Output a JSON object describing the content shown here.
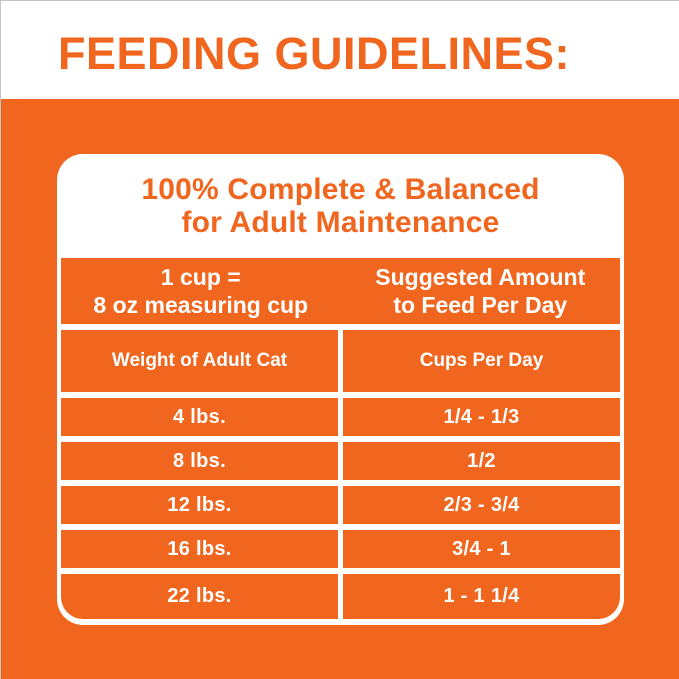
{
  "colors": {
    "orange": "#F0661E",
    "white": "#FFFFFF"
  },
  "header": {
    "title": "FEEDING GUIDELINES:"
  },
  "panel": {
    "heading_line1": "100% Complete & Balanced",
    "heading_line2": "for Adult Maintenance",
    "table": {
      "header_primary": {
        "left": [
          "1 cup =",
          "8 oz measuring cup"
        ],
        "right": [
          "Suggested Amount",
          "to Feed Per Day"
        ]
      },
      "columns": [
        "Weight of Adult Cat",
        "Cups Per Day"
      ],
      "rows": [
        {
          "weight": "4 lbs.",
          "cups": "1/4 - 1/3"
        },
        {
          "weight": "8 lbs.",
          "cups": "1/2"
        },
        {
          "weight": "12 lbs.",
          "cups": "2/3 - 3/4"
        },
        {
          "weight": "16 lbs.",
          "cups": "3/4 - 1"
        },
        {
          "weight": "22 lbs.",
          "cups": "1 - 1 1/4"
        }
      ]
    }
  }
}
